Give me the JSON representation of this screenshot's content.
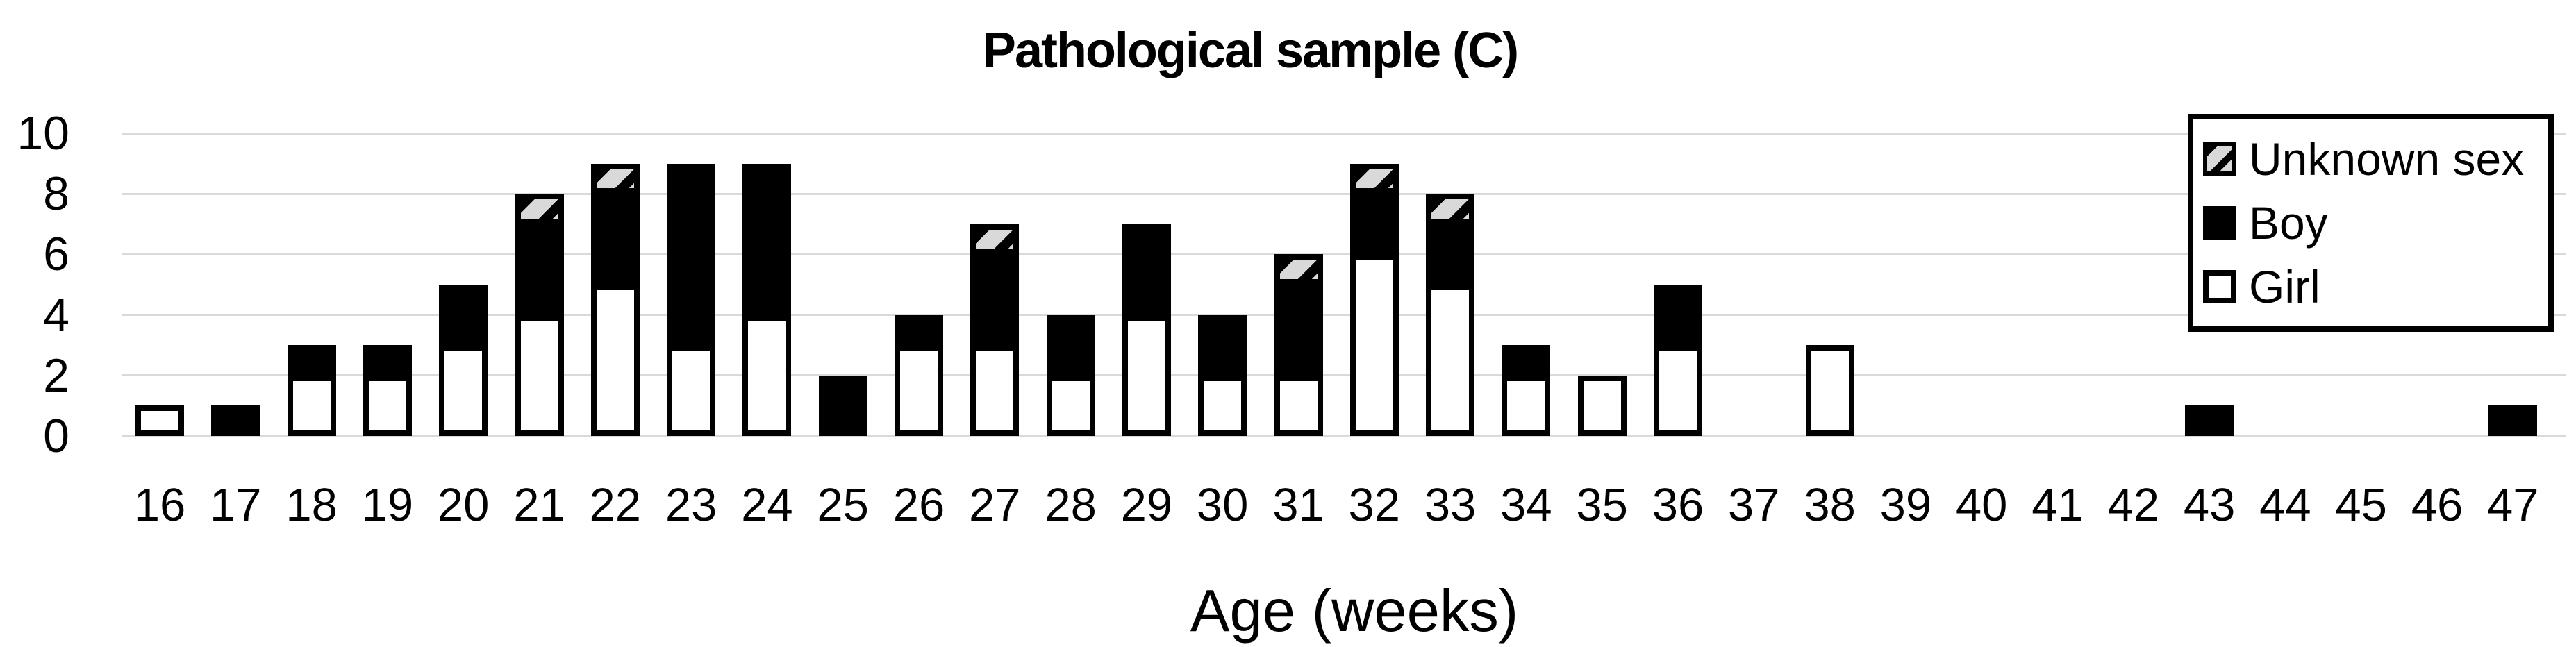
{
  "chart_data": {
    "type": "bar",
    "stacked": true,
    "title": "Pathological sample (C)",
    "xlabel": "Age (weeks)",
    "ylabel": "",
    "ylim": [
      0,
      10
    ],
    "yticks": [
      0,
      2,
      4,
      6,
      8,
      10
    ],
    "grid": "horizontal",
    "legend_position": "top-right",
    "categories": [
      16,
      17,
      18,
      19,
      20,
      21,
      22,
      23,
      24,
      25,
      26,
      27,
      28,
      29,
      30,
      31,
      32,
      33,
      34,
      35,
      36,
      37,
      38,
      39,
      40,
      41,
      42,
      43,
      44,
      45,
      46,
      47
    ],
    "series": [
      {
        "name": "Girl",
        "style": "white-outline",
        "values": [
          1,
          0,
          2,
          2,
          3,
          4,
          5,
          3,
          4,
          0,
          3,
          3,
          2,
          4,
          2,
          2,
          6,
          5,
          2,
          2,
          3,
          0,
          3,
          0,
          0,
          0,
          0,
          0,
          0,
          0,
          0,
          0
        ]
      },
      {
        "name": "Boy",
        "style": "solid-black",
        "values": [
          0,
          1,
          1,
          1,
          2,
          3,
          3,
          6,
          5,
          2,
          1,
          3,
          2,
          3,
          2,
          3,
          2,
          2,
          1,
          0,
          2,
          0,
          0,
          0,
          0,
          0,
          0,
          1,
          0,
          0,
          0,
          1
        ]
      },
      {
        "name": "Unknown sex",
        "style": "hatched",
        "values": [
          0,
          0,
          0,
          0,
          0,
          1,
          1,
          0,
          0,
          0,
          0,
          1,
          0,
          0,
          0,
          1,
          1,
          1,
          0,
          0,
          0,
          0,
          0,
          0,
          0,
          0,
          0,
          0,
          0,
          0,
          0,
          0
        ]
      }
    ],
    "legend": [
      {
        "label": "Unknown sex",
        "swatch": "hatched-icon"
      },
      {
        "label": "Boy",
        "swatch": "black-square-icon"
      },
      {
        "label": "Girl",
        "swatch": "white-square-icon"
      }
    ],
    "colors": {
      "bar_black": "#000000",
      "bar_white": "#ffffff",
      "hatch_background": "#d9d9d9",
      "gridline": "#d9d9d9",
      "text": "#000000"
    }
  }
}
